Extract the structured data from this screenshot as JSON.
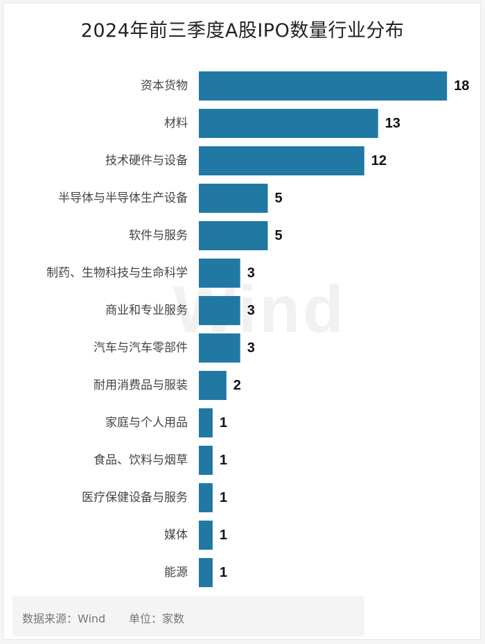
{
  "title": "2024年前三季度A股IPO数量行业分布",
  "watermark": "Wind",
  "footer": {
    "source": "数据来源：Wind",
    "unit": "单位：家数"
  },
  "colors": {
    "bar": "#2178a3",
    "label": "#444444",
    "value": "#111111"
  },
  "chart_data": {
    "type": "bar",
    "orientation": "horizontal",
    "title": "2024年前三季度A股IPO数量行业分布",
    "xlabel": "",
    "ylabel": "",
    "unit": "家数",
    "xlim": [
      0,
      18
    ],
    "grid": false,
    "legend": "none",
    "categories": [
      "资本货物",
      "材料",
      "技术硬件与设备",
      "半导体与半导体生产设备",
      "软件与服务",
      "制药、生物科技与生命科学",
      "商业和专业服务",
      "汽车与汽车零部件",
      "耐用消费品与服装",
      "家庭与个人用品",
      "食品、饮料与烟草",
      "医疗保健设备与服务",
      "媒体",
      "能源"
    ],
    "values": [
      18,
      13,
      12,
      5,
      5,
      3,
      3,
      3,
      2,
      1,
      1,
      1,
      1,
      1
    ]
  }
}
